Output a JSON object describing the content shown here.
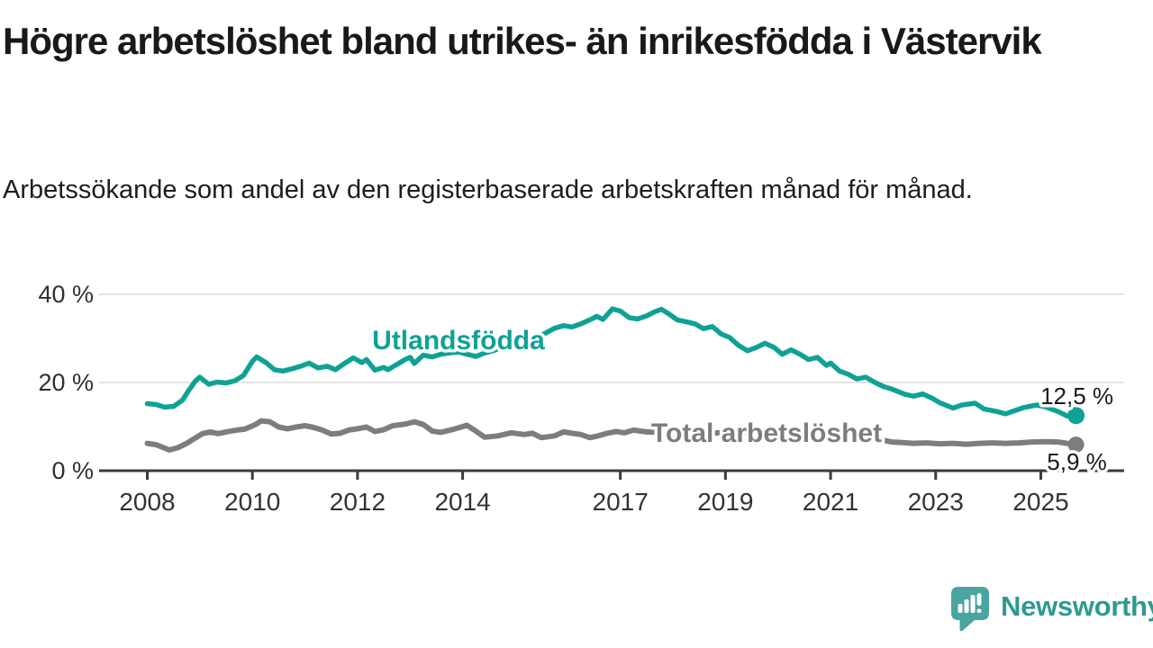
{
  "chart_data": {
    "type": "line",
    "title": "Högre arbetslöshet bland utrikes- än inrikesfödda i Västervik",
    "subtitle": "Arbetssökande som andel av den registerbaserade arbetskraften månad för månad.",
    "x_axis": {
      "ticks": [
        {
          "value": 2008,
          "label": "2008"
        },
        {
          "value": 2010,
          "label": "2010"
        },
        {
          "value": 2012,
          "label": "2012"
        },
        {
          "value": 2014,
          "label": "2014"
        },
        {
          "value": 2017,
          "label": "2017"
        },
        {
          "value": 2019,
          "label": "2019"
        },
        {
          "value": 2021,
          "label": "2021"
        },
        {
          "value": 2023,
          "label": "2023"
        },
        {
          "value": 2025,
          "label": "2025"
        }
      ],
      "range": [
        2007.8,
        2025.9
      ]
    },
    "y_axis": {
      "ticks": [
        {
          "value": 0,
          "label": "0 %"
        },
        {
          "value": 20,
          "label": "20 %"
        },
        {
          "value": 40,
          "label": "40 %"
        }
      ],
      "range": [
        0,
        42
      ],
      "gridlines": true
    },
    "legend_position": "inline-labels",
    "series": [
      {
        "name": "Utlandsfödda",
        "color": "#0fa294",
        "end_label": "12,5 %",
        "end_value": 12.5,
        "points": [
          [
            2008.0,
            15.2
          ],
          [
            2008.17,
            15.0
          ],
          [
            2008.33,
            14.4
          ],
          [
            2008.5,
            14.6
          ],
          [
            2008.67,
            16.0
          ],
          [
            2008.8,
            18.4
          ],
          [
            2008.92,
            20.4
          ],
          [
            2009.0,
            21.2
          ],
          [
            2009.17,
            19.6
          ],
          [
            2009.33,
            20.1
          ],
          [
            2009.5,
            19.9
          ],
          [
            2009.67,
            20.4
          ],
          [
            2009.83,
            21.6
          ],
          [
            2010.0,
            24.8
          ],
          [
            2010.08,
            25.8
          ],
          [
            2010.25,
            24.6
          ],
          [
            2010.42,
            22.9
          ],
          [
            2010.58,
            22.6
          ],
          [
            2010.75,
            23.1
          ],
          [
            2010.92,
            23.7
          ],
          [
            2011.08,
            24.4
          ],
          [
            2011.25,
            23.3
          ],
          [
            2011.42,
            23.7
          ],
          [
            2011.58,
            22.9
          ],
          [
            2011.75,
            24.3
          ],
          [
            2011.92,
            25.6
          ],
          [
            2012.08,
            24.5
          ],
          [
            2012.17,
            25.2
          ],
          [
            2012.33,
            22.8
          ],
          [
            2012.5,
            23.4
          ],
          [
            2012.58,
            22.9
          ],
          [
            2012.75,
            24.1
          ],
          [
            2012.92,
            25.3
          ],
          [
            2013.0,
            25.7
          ],
          [
            2013.08,
            24.3
          ],
          [
            2013.25,
            26.2
          ],
          [
            2013.42,
            25.8
          ],
          [
            2013.58,
            26.4
          ],
          [
            2013.75,
            26.7
          ],
          [
            2013.92,
            26.9
          ],
          [
            2014.08,
            26.4
          ],
          [
            2014.25,
            25.9
          ],
          [
            2014.42,
            26.7
          ],
          [
            2014.58,
            27.2
          ],
          [
            2014.75,
            27.9
          ],
          [
            2014.92,
            28.4
          ],
          [
            2015.08,
            28.9
          ],
          [
            2015.25,
            29.5
          ],
          [
            2015.42,
            30.3
          ],
          [
            2015.58,
            31.2
          ],
          [
            2015.75,
            32.3
          ],
          [
            2015.92,
            32.9
          ],
          [
            2016.08,
            32.6
          ],
          [
            2016.25,
            33.3
          ],
          [
            2016.42,
            34.2
          ],
          [
            2016.55,
            35.0
          ],
          [
            2016.67,
            34.3
          ],
          [
            2016.85,
            36.7
          ],
          [
            2017.0,
            36.2
          ],
          [
            2017.17,
            34.7
          ],
          [
            2017.33,
            34.4
          ],
          [
            2017.5,
            35.1
          ],
          [
            2017.65,
            36.0
          ],
          [
            2017.78,
            36.6
          ],
          [
            2017.92,
            35.6
          ],
          [
            2018.08,
            34.2
          ],
          [
            2018.25,
            33.8
          ],
          [
            2018.42,
            33.3
          ],
          [
            2018.58,
            32.2
          ],
          [
            2018.75,
            32.7
          ],
          [
            2018.92,
            31.0
          ],
          [
            2019.08,
            30.2
          ],
          [
            2019.25,
            28.4
          ],
          [
            2019.42,
            27.2
          ],
          [
            2019.58,
            27.9
          ],
          [
            2019.75,
            28.9
          ],
          [
            2019.92,
            28.0
          ],
          [
            2020.08,
            26.4
          ],
          [
            2020.25,
            27.4
          ],
          [
            2020.42,
            26.4
          ],
          [
            2020.58,
            25.2
          ],
          [
            2020.75,
            25.7
          ],
          [
            2020.92,
            23.9
          ],
          [
            2021.0,
            24.4
          ],
          [
            2021.17,
            22.6
          ],
          [
            2021.33,
            21.9
          ],
          [
            2021.5,
            20.8
          ],
          [
            2021.67,
            21.2
          ],
          [
            2021.83,
            20.1
          ],
          [
            2022.0,
            19.1
          ],
          [
            2022.17,
            18.5
          ],
          [
            2022.42,
            17.3
          ],
          [
            2022.58,
            16.9
          ],
          [
            2022.75,
            17.4
          ],
          [
            2022.92,
            16.5
          ],
          [
            2023.08,
            15.4
          ],
          [
            2023.33,
            14.2
          ],
          [
            2023.5,
            14.9
          ],
          [
            2023.75,
            15.3
          ],
          [
            2023.92,
            14.0
          ],
          [
            2024.17,
            13.4
          ],
          [
            2024.33,
            12.9
          ],
          [
            2024.5,
            13.6
          ],
          [
            2024.67,
            14.3
          ],
          [
            2024.92,
            14.9
          ],
          [
            2025.08,
            14.5
          ],
          [
            2025.33,
            13.4
          ],
          [
            2025.5,
            12.4
          ],
          [
            2025.67,
            12.5
          ]
        ]
      },
      {
        "name": "Total arbetslöshet",
        "color": "#7d7d7d",
        "end_label": "5,9 %",
        "end_value": 5.9,
        "points": [
          [
            2008.0,
            6.2
          ],
          [
            2008.17,
            5.9
          ],
          [
            2008.42,
            4.7
          ],
          [
            2008.58,
            5.2
          ],
          [
            2008.75,
            6.2
          ],
          [
            2008.9,
            7.3
          ],
          [
            2009.05,
            8.4
          ],
          [
            2009.2,
            8.8
          ],
          [
            2009.35,
            8.4
          ],
          [
            2009.5,
            8.8
          ],
          [
            2009.7,
            9.2
          ],
          [
            2009.85,
            9.4
          ],
          [
            2010.05,
            10.4
          ],
          [
            2010.17,
            11.3
          ],
          [
            2010.33,
            11.1
          ],
          [
            2010.5,
            9.9
          ],
          [
            2010.67,
            9.5
          ],
          [
            2010.83,
            9.9
          ],
          [
            2011.0,
            10.2
          ],
          [
            2011.17,
            9.8
          ],
          [
            2011.33,
            9.2
          ],
          [
            2011.5,
            8.3
          ],
          [
            2011.67,
            8.5
          ],
          [
            2011.83,
            9.2
          ],
          [
            2012.0,
            9.5
          ],
          [
            2012.17,
            9.9
          ],
          [
            2012.33,
            8.9
          ],
          [
            2012.5,
            9.3
          ],
          [
            2012.67,
            10.2
          ],
          [
            2012.92,
            10.6
          ],
          [
            2013.08,
            11.1
          ],
          [
            2013.25,
            10.5
          ],
          [
            2013.42,
            9.0
          ],
          [
            2013.58,
            8.7
          ],
          [
            2013.83,
            9.4
          ],
          [
            2014.0,
            10.0
          ],
          [
            2014.08,
            10.3
          ],
          [
            2014.25,
            9.0
          ],
          [
            2014.42,
            7.6
          ],
          [
            2014.67,
            7.9
          ],
          [
            2014.92,
            8.6
          ],
          [
            2015.17,
            8.2
          ],
          [
            2015.33,
            8.5
          ],
          [
            2015.5,
            7.5
          ],
          [
            2015.75,
            7.9
          ],
          [
            2015.92,
            8.8
          ],
          [
            2016.08,
            8.5
          ],
          [
            2016.25,
            8.2
          ],
          [
            2016.42,
            7.5
          ],
          [
            2016.58,
            7.9
          ],
          [
            2016.75,
            8.5
          ],
          [
            2016.92,
            8.9
          ],
          [
            2017.08,
            8.6
          ],
          [
            2017.25,
            9.2
          ],
          [
            2017.5,
            8.8
          ],
          [
            2017.75,
            8.7
          ],
          [
            2018.0,
            8.9
          ],
          [
            2018.25,
            8.6
          ],
          [
            2018.5,
            8.8
          ],
          [
            2018.75,
            8.5
          ],
          [
            2019.0,
            8.7
          ],
          [
            2019.25,
            8.5
          ],
          [
            2019.5,
            8.8
          ],
          [
            2019.75,
            8.6
          ],
          [
            2020.0,
            9.0
          ],
          [
            2020.25,
            9.6
          ],
          [
            2020.5,
            9.4
          ],
          [
            2020.75,
            9.0
          ],
          [
            2021.0,
            8.7
          ],
          [
            2021.25,
            8.3
          ],
          [
            2021.5,
            7.8
          ],
          [
            2021.75,
            7.3
          ],
          [
            2022.0,
            6.9
          ],
          [
            2022.17,
            6.5
          ],
          [
            2022.33,
            6.4
          ],
          [
            2022.58,
            6.2
          ],
          [
            2022.83,
            6.3
          ],
          [
            2023.08,
            6.1
          ],
          [
            2023.33,
            6.2
          ],
          [
            2023.58,
            6.0
          ],
          [
            2023.83,
            6.2
          ],
          [
            2024.08,
            6.3
          ],
          [
            2024.33,
            6.2
          ],
          [
            2024.58,
            6.3
          ],
          [
            2024.83,
            6.5
          ],
          [
            2025.08,
            6.6
          ],
          [
            2025.33,
            6.5
          ],
          [
            2025.5,
            6.2
          ],
          [
            2025.67,
            5.9
          ]
        ]
      }
    ]
  },
  "branding": {
    "logo_text": "Newsworthy",
    "logo_icon": "bar-chart-speech-bubble-icon",
    "logo_text_color": "#2e9a91",
    "logo_icon_color": "#4aa4a0"
  }
}
